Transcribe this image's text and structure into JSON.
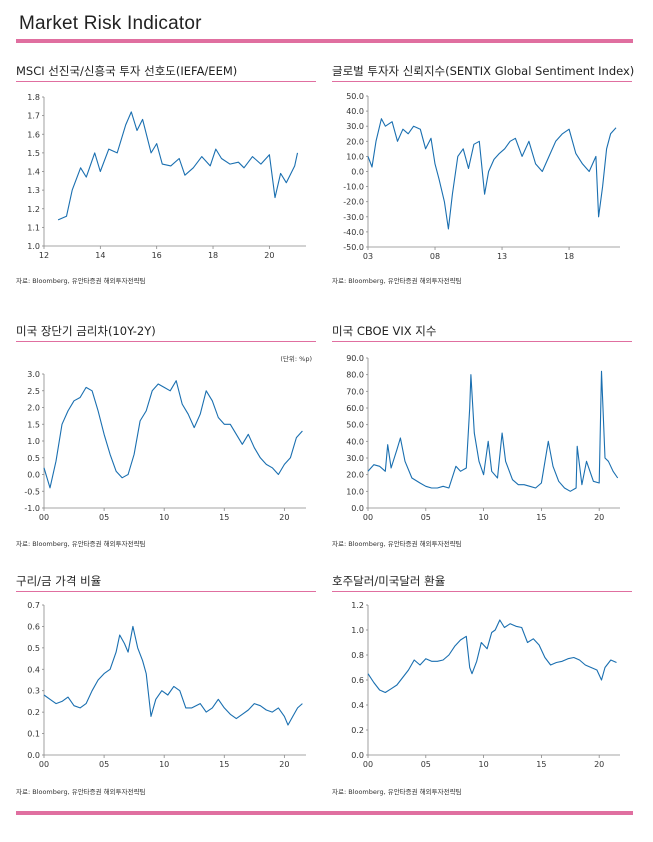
{
  "page": {
    "title": "Market Risk Indicator",
    "source": "자료: Bloomberg,  유안타증권 해외투자전략팀",
    "colors": {
      "accent": "#e06fa0",
      "series": "#1a6fb0"
    }
  },
  "chart_data": [
    {
      "type": "line",
      "title": "MSCI 선진국/신흥국  투자 선호도(IEFA/EEM)",
      "unit": "",
      "xlabels": [
        "12",
        "14",
        "16",
        "18",
        "20"
      ],
      "x_tick_years": [
        2012,
        2014,
        2016,
        2018,
        2020
      ],
      "xlim": [
        2012,
        2021.3
      ],
      "ylim": [
        1.0,
        1.8
      ],
      "yticks": [
        "1.8",
        "1.7",
        "1.6",
        "1.5",
        "1.4",
        "1.3",
        "1.2",
        "1.1",
        "1.0"
      ],
      "grid": false,
      "series": [
        {
          "x": [
            2012.5,
            2012.8,
            2013.0,
            2013.3,
            2013.5,
            2013.8,
            2014.0,
            2014.3,
            2014.6,
            2014.9,
            2015.1,
            2015.3,
            2015.5,
            2015.8,
            2016.0,
            2016.2,
            2016.5,
            2016.8,
            2017.0,
            2017.3,
            2017.6,
            2017.9,
            2018.1,
            2018.3,
            2018.6,
            2018.9,
            2019.1,
            2019.4,
            2019.7,
            2020.0,
            2020.2,
            2020.4,
            2020.6,
            2020.9,
            2021.0
          ],
          "values": [
            1.14,
            1.16,
            1.3,
            1.42,
            1.37,
            1.5,
            1.4,
            1.52,
            1.5,
            1.65,
            1.72,
            1.62,
            1.68,
            1.5,
            1.55,
            1.44,
            1.43,
            1.47,
            1.38,
            1.42,
            1.48,
            1.43,
            1.52,
            1.47,
            1.44,
            1.45,
            1.42,
            1.48,
            1.44,
            1.49,
            1.26,
            1.39,
            1.34,
            1.43,
            1.5
          ]
        }
      ]
    },
    {
      "type": "line",
      "title": "글로벌 투자자 신뢰지수(SENTIX  Global Sentiment Index)",
      "unit": "",
      "xlabels": [
        "03",
        "08",
        "13",
        "18"
      ],
      "x_tick_years": [
        2003,
        2008,
        2013,
        2018
      ],
      "xlim": [
        2003,
        2021.8
      ],
      "ylim": [
        -50,
        50
      ],
      "yticks": [
        "50.0",
        "40.0",
        "30.0",
        "20.0",
        "10.0",
        "0.0",
        "-10.0",
        "-20.0",
        "-30.0",
        "-40.0",
        "-50.0"
      ],
      "grid": false,
      "series": [
        {
          "x": [
            2003.0,
            2003.3,
            2003.6,
            2004.0,
            2004.3,
            2004.8,
            2005.2,
            2005.6,
            2006.0,
            2006.4,
            2006.9,
            2007.3,
            2007.7,
            2008.0,
            2008.3,
            2008.7,
            2009.0,
            2009.3,
            2009.7,
            2010.1,
            2010.5,
            2010.9,
            2011.3,
            2011.7,
            2012.0,
            2012.4,
            2012.8,
            2013.2,
            2013.6,
            2014.0,
            2014.5,
            2015.0,
            2015.5,
            2016.0,
            2016.5,
            2017.0,
            2017.5,
            2018.0,
            2018.5,
            2019.0,
            2019.5,
            2020.0,
            2020.2,
            2020.5,
            2020.8,
            2021.1,
            2021.5
          ],
          "values": [
            10,
            3,
            20,
            35,
            30,
            33,
            20,
            28,
            25,
            30,
            28,
            15,
            22,
            5,
            -5,
            -20,
            -38,
            -15,
            10,
            15,
            2,
            18,
            20,
            -15,
            0,
            8,
            12,
            15,
            20,
            22,
            10,
            20,
            5,
            0,
            10,
            20,
            25,
            28,
            12,
            5,
            0,
            10,
            -30,
            -10,
            15,
            25,
            29
          ]
        }
      ]
    },
    {
      "type": "line",
      "title": "미국 장단기 금리차(10Y-2Y)",
      "unit": "(단위: %p)",
      "xlabels": [
        "00",
        "05",
        "10",
        "15",
        "20"
      ],
      "x_tick_years": [
        2000,
        2005,
        2010,
        2015,
        2020
      ],
      "xlim": [
        2000,
        2021.8
      ],
      "ylim": [
        -1.0,
        3.0
      ],
      "yticks": [
        "3.0",
        "2.5",
        "2.0",
        "1.5",
        "1.0",
        "0.5",
        "0.0",
        "-0.5",
        "-1.0"
      ],
      "grid": false,
      "series": [
        {
          "x": [
            2000.0,
            2000.5,
            2001.0,
            2001.5,
            2002.0,
            2002.5,
            2003.0,
            2003.5,
            2004.0,
            2004.5,
            2005.0,
            2005.5,
            2006.0,
            2006.5,
            2007.0,
            2007.5,
            2008.0,
            2008.5,
            2009.0,
            2009.5,
            2010.0,
            2010.5,
            2011.0,
            2011.5,
            2012.0,
            2012.5,
            2013.0,
            2013.5,
            2014.0,
            2014.5,
            2015.0,
            2015.5,
            2016.0,
            2016.5,
            2017.0,
            2017.5,
            2018.0,
            2018.5,
            2019.0,
            2019.5,
            2020.0,
            2020.5,
            2021.0,
            2021.5
          ],
          "values": [
            0.2,
            -0.4,
            0.4,
            1.5,
            1.9,
            2.2,
            2.3,
            2.6,
            2.5,
            1.9,
            1.2,
            0.6,
            0.1,
            -0.1,
            0.0,
            0.6,
            1.6,
            1.9,
            2.5,
            2.7,
            2.6,
            2.5,
            2.8,
            2.1,
            1.8,
            1.4,
            1.8,
            2.5,
            2.2,
            1.7,
            1.5,
            1.5,
            1.2,
            0.9,
            1.2,
            0.8,
            0.5,
            0.3,
            0.2,
            0.0,
            0.3,
            0.5,
            1.1,
            1.3
          ]
        }
      ]
    },
    {
      "type": "line",
      "title": "미국 CBOE VIX 지수",
      "unit": "",
      "xlabels": [
        "00",
        "05",
        "10",
        "15",
        "20"
      ],
      "x_tick_years": [
        2000,
        2005,
        2010,
        2015,
        2020
      ],
      "xlim": [
        2000,
        2021.8
      ],
      "ylim": [
        0,
        90
      ],
      "yticks": [
        "90.0",
        "80.0",
        "70.0",
        "60.0",
        "50.0",
        "40.0",
        "30.0",
        "20.0",
        "10.0",
        "0.0"
      ],
      "grid": false,
      "series": [
        {
          "x": [
            2000.0,
            2000.5,
            2001.0,
            2001.5,
            2001.7,
            2002.0,
            2002.5,
            2002.8,
            2003.2,
            2003.8,
            2004.5,
            2005.0,
            2005.5,
            2006.0,
            2006.5,
            2007.0,
            2007.6,
            2008.0,
            2008.5,
            2008.8,
            2008.9,
            2009.2,
            2009.6,
            2010.0,
            2010.4,
            2010.7,
            2011.2,
            2011.6,
            2011.9,
            2012.5,
            2013.0,
            2013.5,
            2014.0,
            2014.5,
            2015.0,
            2015.6,
            2016.0,
            2016.5,
            2017.0,
            2017.5,
            2018.0,
            2018.1,
            2018.5,
            2018.9,
            2019.5,
            2020.0,
            2020.2,
            2020.5,
            2020.8,
            2021.2,
            2021.6
          ],
          "values": [
            22,
            26,
            25,
            22,
            38,
            24,
            35,
            42,
            28,
            18,
            15,
            13,
            12,
            12,
            13,
            12,
            25,
            22,
            24,
            60,
            80,
            45,
            28,
            20,
            40,
            22,
            18,
            45,
            28,
            17,
            14,
            14,
            13,
            12,
            15,
            40,
            25,
            16,
            12,
            10,
            12,
            37,
            14,
            28,
            16,
            15,
            82,
            30,
            28,
            22,
            18
          ]
        }
      ]
    },
    {
      "type": "line",
      "title": "구리/금 가격 비율",
      "unit": "",
      "xlabels": [
        "00",
        "05",
        "10",
        "15",
        "20"
      ],
      "x_tick_years": [
        2000,
        2005,
        2010,
        2015,
        2020
      ],
      "xlim": [
        2000,
        2021.8
      ],
      "ylim": [
        0.0,
        0.7
      ],
      "yticks": [
        "0.7",
        "0.6",
        "0.5",
        "0.4",
        "0.3",
        "0.2",
        "0.1",
        "0.0"
      ],
      "grid": false,
      "series": [
        {
          "x": [
            2000.0,
            2000.5,
            2001.0,
            2001.5,
            2002.0,
            2002.5,
            2003.0,
            2003.5,
            2004.0,
            2004.5,
            2005.0,
            2005.5,
            2006.0,
            2006.3,
            2006.7,
            2007.0,
            2007.4,
            2007.8,
            2008.2,
            2008.5,
            2008.9,
            2009.3,
            2009.8,
            2010.3,
            2010.8,
            2011.3,
            2011.8,
            2012.3,
            2013.0,
            2013.5,
            2014.0,
            2014.5,
            2015.0,
            2015.5,
            2016.0,
            2016.5,
            2017.0,
            2017.5,
            2018.0,
            2018.5,
            2019.0,
            2019.5,
            2020.0,
            2020.3,
            2020.7,
            2021.1,
            2021.5
          ],
          "values": [
            0.28,
            0.26,
            0.24,
            0.25,
            0.27,
            0.23,
            0.22,
            0.24,
            0.3,
            0.35,
            0.38,
            0.4,
            0.48,
            0.56,
            0.52,
            0.48,
            0.6,
            0.5,
            0.44,
            0.38,
            0.18,
            0.26,
            0.3,
            0.28,
            0.32,
            0.3,
            0.22,
            0.22,
            0.24,
            0.2,
            0.22,
            0.26,
            0.22,
            0.19,
            0.17,
            0.19,
            0.21,
            0.24,
            0.23,
            0.21,
            0.2,
            0.22,
            0.18,
            0.14,
            0.18,
            0.22,
            0.24
          ]
        }
      ]
    },
    {
      "type": "line",
      "title": "호주달러/미국달러  환율",
      "unit": "",
      "xlabels": [
        "00",
        "05",
        "10",
        "15",
        "20"
      ],
      "x_tick_years": [
        2000,
        2005,
        2010,
        2015,
        2020
      ],
      "xlim": [
        2000,
        2021.8
      ],
      "ylim": [
        0.0,
        1.2
      ],
      "yticks": [
        "1.2",
        "1.0",
        "0.8",
        "0.6",
        "0.4",
        "0.2",
        "0.0"
      ],
      "grid": false,
      "series": [
        {
          "x": [
            2000.0,
            2000.5,
            2001.0,
            2001.5,
            2002.0,
            2002.5,
            2003.0,
            2003.5,
            2004.0,
            2004.5,
            2005.0,
            2005.5,
            2006.0,
            2006.5,
            2007.0,
            2007.5,
            2008.0,
            2008.5,
            2008.8,
            2009.0,
            2009.4,
            2009.8,
            2010.3,
            2010.7,
            2011.0,
            2011.4,
            2011.8,
            2012.3,
            2012.8,
            2013.3,
            2013.8,
            2014.3,
            2014.8,
            2015.3,
            2015.8,
            2016.3,
            2016.8,
            2017.3,
            2017.8,
            2018.3,
            2018.8,
            2019.3,
            2019.8,
            2020.2,
            2020.5,
            2021.0,
            2021.5
          ],
          "values": [
            0.65,
            0.58,
            0.52,
            0.5,
            0.53,
            0.56,
            0.62,
            0.68,
            0.76,
            0.72,
            0.77,
            0.75,
            0.75,
            0.76,
            0.8,
            0.87,
            0.92,
            0.95,
            0.7,
            0.65,
            0.75,
            0.9,
            0.85,
            0.98,
            1.0,
            1.08,
            1.02,
            1.05,
            1.03,
            1.02,
            0.9,
            0.93,
            0.88,
            0.78,
            0.72,
            0.74,
            0.75,
            0.77,
            0.78,
            0.76,
            0.72,
            0.7,
            0.68,
            0.6,
            0.7,
            0.76,
            0.74
          ]
        }
      ]
    }
  ]
}
